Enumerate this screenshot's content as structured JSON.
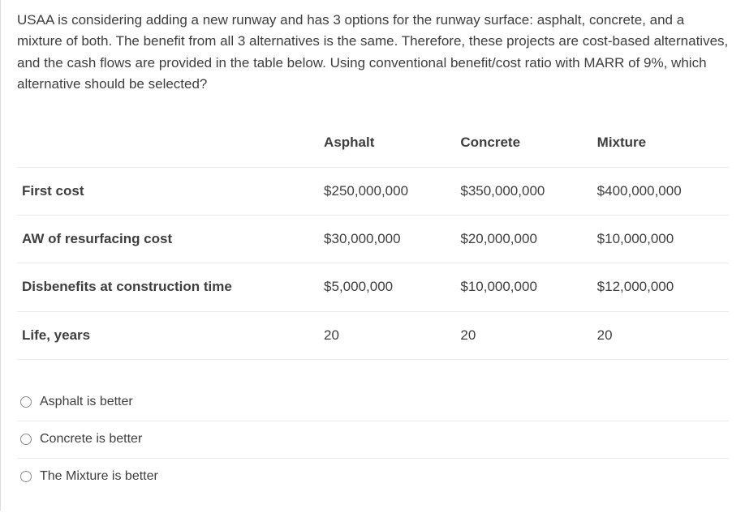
{
  "question": {
    "text": "USAA is considering adding a new runway and has 3 options for the runway surface: asphalt, concrete, and a mixture of both.  The benefit from all 3 alternatives is the same.  Therefore, these projects are cost-based alternatives, and the cash flows are provided in the table below.  Using conventional benefit/cost ratio with MARR of 9%, which alternative should be selected?"
  },
  "table": {
    "column_headers": [
      "",
      "Asphalt",
      "Concrete",
      "Mixture"
    ],
    "rows": [
      {
        "label": "First cost",
        "values": [
          "$250,000,000",
          "$350,000,000",
          "$400,000,000"
        ]
      },
      {
        "label": "AW of resurfacing cost",
        "values": [
          "$30,000,000",
          "$20,000,000",
          "$10,000,000"
        ]
      },
      {
        "label": "Disbenefits at construction time",
        "values": [
          "$5,000,000",
          "$10,000,000",
          "$12,000,000"
        ]
      },
      {
        "label": "Life, years",
        "values": [
          "20",
          "20",
          "20"
        ]
      }
    ]
  },
  "options": [
    {
      "label": "Asphalt is better"
    },
    {
      "label": "Concrete is better"
    },
    {
      "label": "The Mixture is better"
    }
  ]
}
